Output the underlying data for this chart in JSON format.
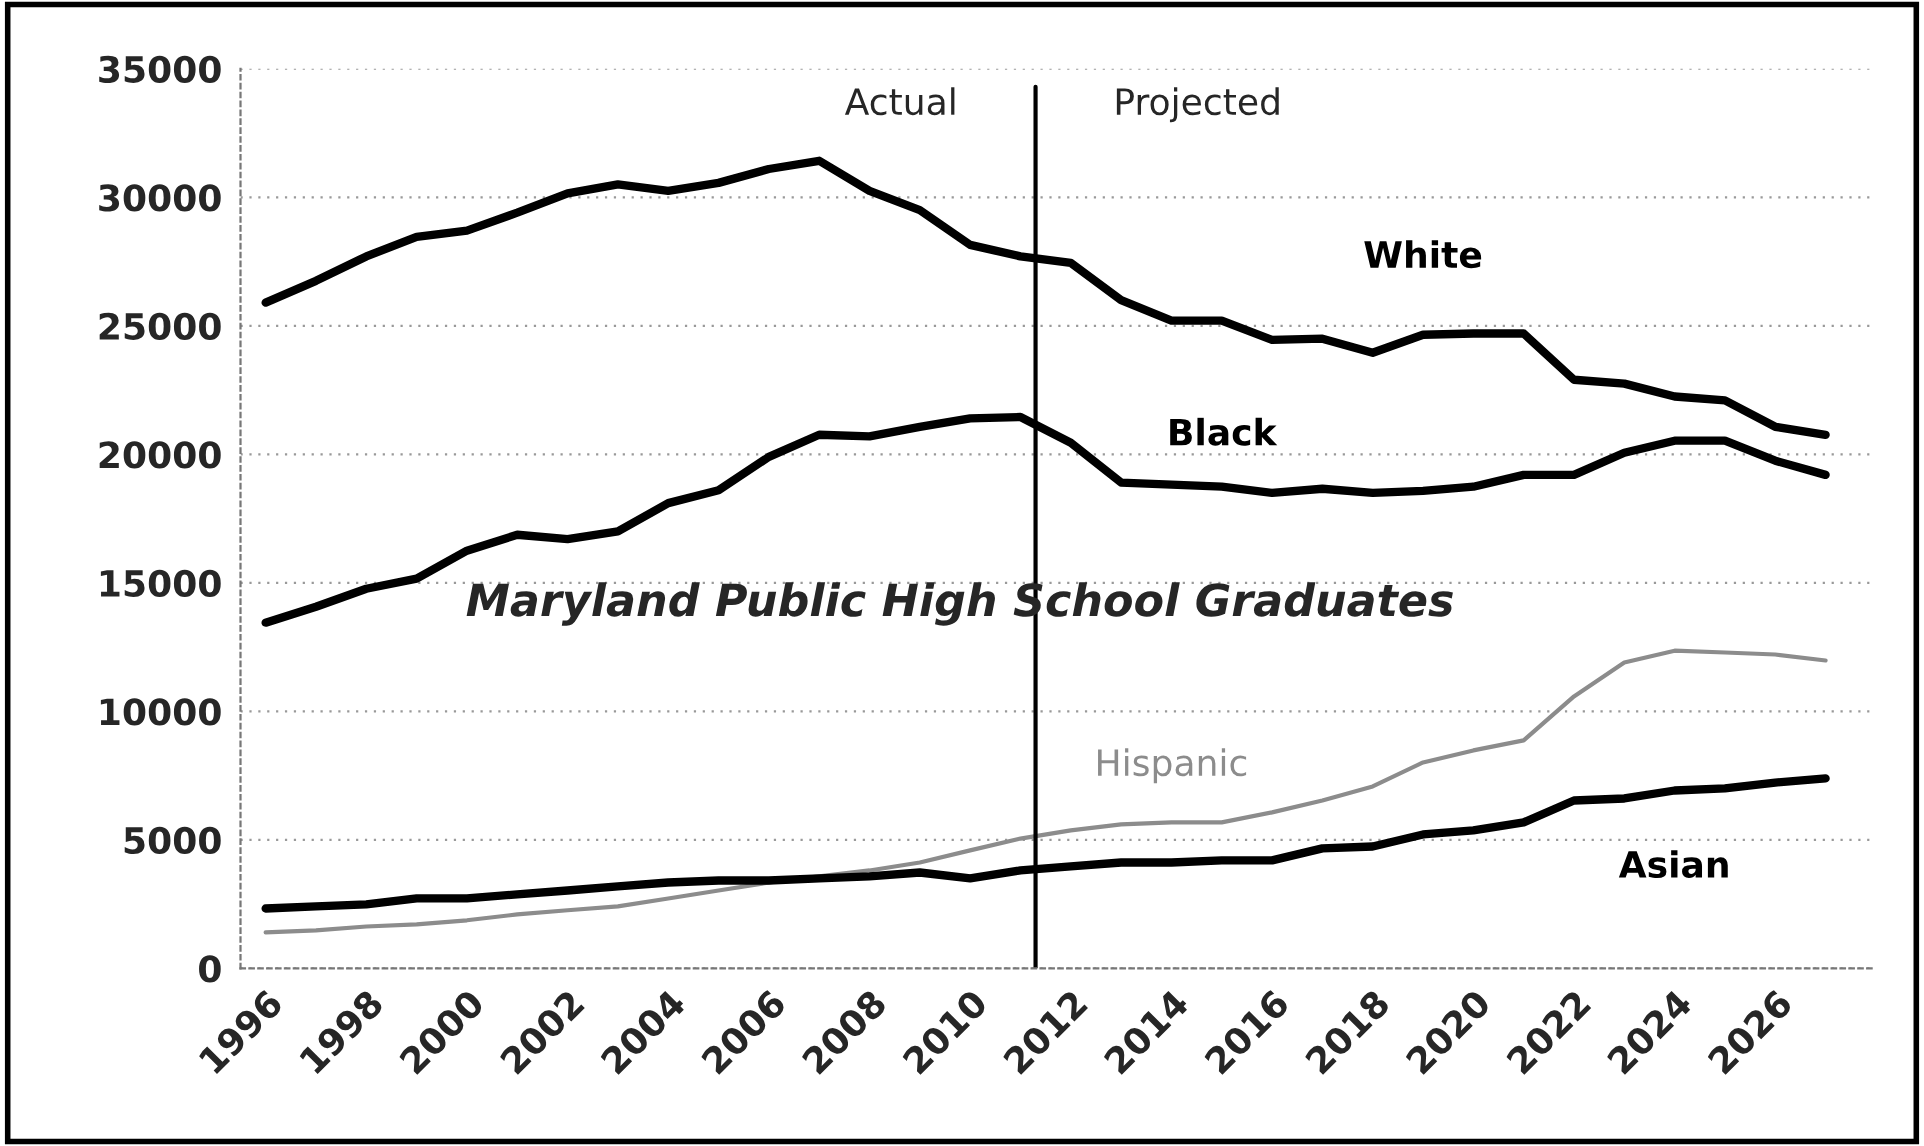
{
  "chart_data": {
    "type": "line",
    "title": "Maryland Public High School Graduates",
    "x": [
      1996,
      1997,
      1998,
      1999,
      2000,
      2001,
      2002,
      2003,
      2004,
      2005,
      2006,
      2007,
      2008,
      2009,
      2010,
      2011,
      2012,
      2013,
      2014,
      2015,
      2016,
      2017,
      2018,
      2019,
      2020,
      2021,
      2022,
      2023,
      2024,
      2025,
      2026,
      2027
    ],
    "series": [
      {
        "name": "White",
        "color": "#000000",
        "values": [
          25900,
          26750,
          27700,
          28460,
          28700,
          29400,
          30150,
          30500,
          30250,
          30560,
          31100,
          31420,
          30250,
          29500,
          28150,
          27700,
          27450,
          26000,
          25200,
          25200,
          24450,
          24500,
          23950,
          24650,
          24700,
          24700,
          22900,
          22750,
          22250,
          22100,
          21070,
          20760
        ]
      },
      {
        "name": "Black",
        "color": "#000000",
        "values": [
          13450,
          14070,
          14770,
          15160,
          16250,
          16870,
          16700,
          17000,
          18100,
          18600,
          19900,
          20760,
          20700,
          21070,
          21400,
          21450,
          20450,
          18900,
          18820,
          18740,
          18500,
          18660,
          18500,
          18580,
          18740,
          19200,
          19200,
          20060,
          20530,
          20530,
          19750,
          19200
        ]
      },
      {
        "name": "Hispanic",
        "color": "#8c8c8c",
        "values": [
          1400,
          1480,
          1630,
          1710,
          1870,
          2100,
          2260,
          2410,
          2720,
          3030,
          3340,
          3580,
          3810,
          4120,
          4590,
          5050,
          5370,
          5600,
          5680,
          5680,
          6070,
          6530,
          7080,
          8010,
          8480,
          8870,
          10580,
          11900,
          12360,
          12290,
          12210,
          11980
        ]
      },
      {
        "name": "Asian",
        "color": "#000000",
        "values": [
          2330,
          2410,
          2490,
          2720,
          2720,
          2880,
          3030,
          3190,
          3340,
          3420,
          3420,
          3500,
          3580,
          3730,
          3500,
          3810,
          3970,
          4120,
          4120,
          4200,
          4200,
          4670,
          4740,
          5210,
          5370,
          5680,
          6530,
          6610,
          6920,
          7000,
          7230,
          7390
        ]
      }
    ],
    "xlim": [
      1995.5,
      2028
    ],
    "xticks": [
      1996,
      1998,
      2000,
      2002,
      2004,
      2006,
      2008,
      2010,
      2012,
      2014,
      2016,
      2018,
      2020,
      2022,
      2024,
      2026
    ],
    "ylim": [
      0,
      35000
    ],
    "yticks": [
      0,
      5000,
      10000,
      15000,
      20000,
      25000,
      30000,
      35000
    ],
    "ref_lines": [
      {
        "axis": "x",
        "value": 2011.3,
        "color": "#000000"
      }
    ],
    "annotations": [
      "Actual",
      "Projected"
    ],
    "grid": "y",
    "legend": false
  }
}
